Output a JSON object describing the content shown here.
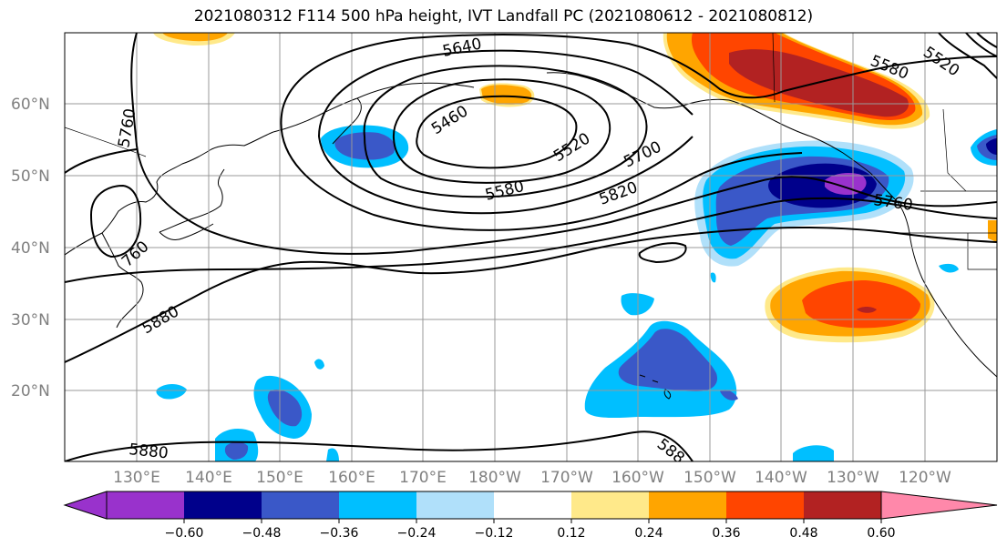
{
  "title": "2021080312 F114 500 hPa height, IVT Landfall PC (2021080612 - 2021080812)",
  "lat_labels": [
    "60°N",
    "50°N",
    "40°N",
    "30°N",
    "20°N"
  ],
  "lon_labels": [
    "130°E",
    "140°E",
    "150°E",
    "160°E",
    "170°E",
    "180°W",
    "170°W",
    "160°W",
    "150°W",
    "140°W",
    "130°W",
    "120°W"
  ],
  "contour_labels": [
    "5640",
    "5460",
    "5520",
    "5580",
    "5700",
    "5820",
    "5580",
    "5520",
    "5760",
    "5760",
    "760",
    "5880",
    "5880",
    "588"
  ],
  "colorbar": {
    "ticks": [
      "−0.60",
      "−0.48",
      "−0.36",
      "−0.24",
      "−0.12",
      "0.12",
      "0.24",
      "0.36",
      "0.48",
      "0.60"
    ],
    "colors": [
      "#9932cc",
      "#00008b",
      "#3a58c8",
      "#00bfff",
      "#b0e0fa",
      "#ffffff",
      "#ffe98a",
      "#ffa500",
      "#ff4500",
      "#b22222",
      "#ff88aa"
    ]
  },
  "colors": {
    "grid": "#999999",
    "contour": "#000000"
  }
}
